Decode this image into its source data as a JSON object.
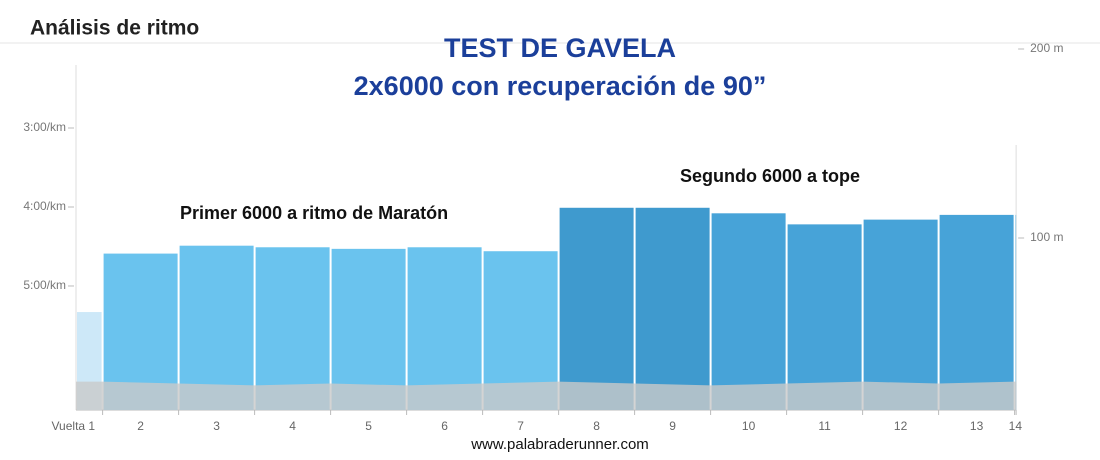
{
  "chart_data": {
    "type": "pace-bars",
    "header": "Análisis de ritmo",
    "title": "TEST DE GAVELA",
    "subtitle": "2x6000 con recuperación de 90”",
    "annotations": [
      "Primer 6000 a ritmo de Maratón",
      "Segundo 6000 a tope"
    ],
    "footer": "www.palabraderunner.com",
    "categories": [
      "Vuelta 1",
      "2",
      "3",
      "4",
      "5",
      "6",
      "7",
      "8",
      "9",
      "10",
      "11",
      "12",
      "13",
      "14"
    ],
    "values": [
      5.33,
      4.59,
      4.49,
      4.51,
      4.53,
      4.51,
      4.56,
      4.01,
      4.01,
      4.08,
      4.22,
      4.16,
      4.1,
      4.1
    ],
    "distances": [
      0.35,
      1,
      1,
      1,
      1,
      1,
      1,
      1,
      1,
      1,
      1,
      1,
      1,
      0.02
    ],
    "colors": [
      "#cde8f8",
      "#6ac3ee",
      "#6ac3ee",
      "#6ac3ee",
      "#6ac3ee",
      "#6ac3ee",
      "#6ac3ee",
      "#3f9ace",
      "#3f9ace",
      "#47a3d8",
      "#47a3d8",
      "#47a3d8",
      "#47a3d8",
      "#47a3d8"
    ],
    "ylim": [
      2,
      6.57
    ],
    "y_inverted": true,
    "yticks": [
      {
        "value": 3,
        "label": "3:00/km"
      },
      {
        "value": 4,
        "label": "4:00/km"
      },
      {
        "value": 5,
        "label": "5:00/km"
      }
    ],
    "elevation": {
      "color": "#c9c9c9",
      "axis": "y2",
      "values": [
        24,
        24,
        23,
        22,
        23,
        22,
        23,
        24,
        23,
        22,
        23,
        24,
        23,
        24,
        24
      ]
    },
    "y2lim": [
      9,
      200
    ],
    "y2ticks": [
      {
        "value": 100,
        "label": "100 m"
      },
      {
        "value": 200,
        "label": "200 m"
      }
    ]
  }
}
